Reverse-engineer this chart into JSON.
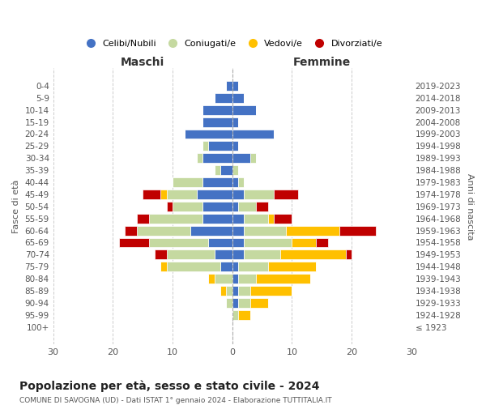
{
  "age_groups": [
    "100+",
    "95-99",
    "90-94",
    "85-89",
    "80-84",
    "75-79",
    "70-74",
    "65-69",
    "60-64",
    "55-59",
    "50-54",
    "45-49",
    "40-44",
    "35-39",
    "30-34",
    "25-29",
    "20-24",
    "15-19",
    "10-14",
    "5-9",
    "0-4"
  ],
  "birth_years": [
    "≤ 1923",
    "1924-1928",
    "1929-1933",
    "1934-1938",
    "1939-1943",
    "1944-1948",
    "1949-1953",
    "1954-1958",
    "1959-1963",
    "1964-1968",
    "1969-1973",
    "1974-1978",
    "1979-1983",
    "1984-1988",
    "1989-1993",
    "1994-1998",
    "1999-2003",
    "2004-2008",
    "2009-2013",
    "2014-2018",
    "2019-2023"
  ],
  "colors": {
    "celibi": "#4472c4",
    "coniugati": "#c5d9a0",
    "vedovi": "#ffc000",
    "divorziati": "#c00000"
  },
  "maschi": {
    "celibi": [
      0,
      0,
      0,
      0,
      0,
      2,
      3,
      4,
      7,
      5,
      5,
      6,
      5,
      2,
      5,
      4,
      8,
      5,
      5,
      3,
      1
    ],
    "coniugati": [
      0,
      0,
      1,
      1,
      3,
      9,
      8,
      10,
      9,
      9,
      5,
      5,
      5,
      1,
      1,
      1,
      0,
      0,
      0,
      0,
      0
    ],
    "vedovi": [
      0,
      0,
      0,
      1,
      1,
      1,
      0,
      0,
      0,
      0,
      0,
      1,
      0,
      0,
      0,
      0,
      0,
      0,
      0,
      0,
      0
    ],
    "divorziati": [
      0,
      0,
      0,
      0,
      0,
      0,
      2,
      5,
      2,
      2,
      1,
      3,
      0,
      0,
      0,
      0,
      0,
      0,
      0,
      0,
      0
    ]
  },
  "femmine": {
    "celibi": [
      0,
      0,
      1,
      1,
      1,
      1,
      2,
      2,
      2,
      2,
      1,
      2,
      1,
      0,
      3,
      1,
      7,
      1,
      4,
      2,
      1
    ],
    "coniugati": [
      0,
      1,
      2,
      2,
      3,
      5,
      6,
      8,
      7,
      4,
      3,
      5,
      1,
      1,
      1,
      0,
      0,
      0,
      0,
      0,
      0
    ],
    "vedovi": [
      0,
      2,
      3,
      7,
      9,
      8,
      11,
      4,
      9,
      1,
      0,
      0,
      0,
      0,
      0,
      0,
      0,
      0,
      0,
      0,
      0
    ],
    "divorziati": [
      0,
      0,
      0,
      0,
      0,
      0,
      1,
      2,
      6,
      3,
      2,
      4,
      0,
      0,
      0,
      0,
      0,
      0,
      0,
      0,
      0
    ]
  },
  "xlim": 30,
  "title": "Popolazione per età, sesso e stato civile - 2024",
  "subtitle": "COMUNE DI SAVOGNA (UD) - Dati ISTAT 1° gennaio 2024 - Elaborazione TUTTITALIA.IT",
  "xlabel_left": "Maschi",
  "xlabel_right": "Femmine",
  "ylabel_left": "Fasce di età",
  "ylabel_right": "Anni di nascita",
  "legend_labels": [
    "Celibi/Nubili",
    "Coniugati/e",
    "Vedovi/e",
    "Divorziati/e"
  ]
}
